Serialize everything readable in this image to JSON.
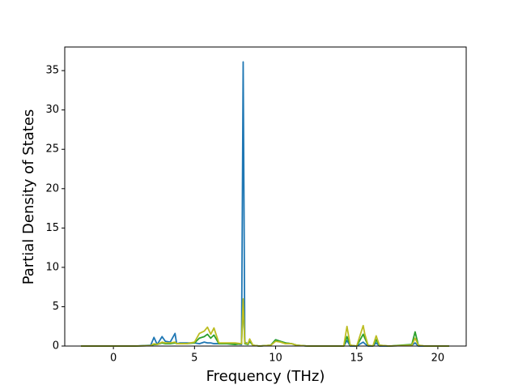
{
  "chart_data": {
    "type": "line",
    "xlabel": "Frequency (THz)",
    "ylabel": "Partial Density of States",
    "x": [
      -2,
      1.3,
      2.3,
      2.5,
      2.7,
      3.0,
      3.2,
      3.5,
      3.8,
      3.9,
      4.1,
      4.5,
      5.0,
      5.3,
      5.6,
      5.8,
      6.0,
      6.2,
      6.5,
      7.0,
      7.5,
      7.9,
      8.0,
      8.1,
      8.3,
      8.4,
      8.6,
      9.0,
      9.7,
      10.0,
      10.3,
      10.6,
      11.0,
      11.3,
      12.0,
      14.2,
      14.4,
      14.6,
      15.0,
      15.4,
      15.5,
      15.7,
      16.0,
      16.2,
      16.4,
      17.0,
      18.4,
      18.6,
      18.8,
      19.2,
      20.7
    ],
    "series": [
      {
        "color": "#1f77b4",
        "values": [
          0,
          0,
          0.1,
          1.1,
          0.2,
          1.2,
          0.6,
          0.5,
          1.6,
          0.3,
          0.4,
          0.4,
          0.4,
          0.3,
          0.5,
          0.4,
          0.4,
          0.3,
          0.3,
          0.3,
          0.3,
          0.2,
          36.1,
          0.5,
          0.3,
          0.8,
          0.1,
          0,
          0.1,
          0.8,
          0.6,
          0.4,
          0.3,
          0.1,
          0,
          0,
          0.7,
          0,
          0,
          0.5,
          0.3,
          0,
          0,
          0.4,
          0,
          0,
          0.1,
          0.4,
          0,
          0,
          0
        ]
      },
      {
        "color": "#2ca02c",
        "values": [
          0,
          0,
          0.05,
          0.2,
          0.2,
          0.4,
          0.3,
          0.3,
          0.4,
          0.3,
          0.3,
          0.3,
          0.4,
          1.0,
          1.2,
          1.5,
          1.0,
          1.4,
          0.3,
          0.3,
          0.2,
          0.3,
          5.5,
          0.3,
          0.2,
          0.6,
          0.1,
          0,
          0.1,
          0.8,
          0.6,
          0.4,
          0.3,
          0.1,
          0,
          0,
          1.2,
          0.1,
          0,
          1.5,
          1.0,
          0.1,
          0,
          0.8,
          0.1,
          0,
          0.2,
          1.8,
          0.1,
          0,
          0
        ]
      },
      {
        "color": "#bcbd22",
        "values": [
          0,
          0,
          0.05,
          0.3,
          0.2,
          0.5,
          0.4,
          0.4,
          0.5,
          0.3,
          0.3,
          0.3,
          0.5,
          1.6,
          1.9,
          2.4,
          1.5,
          2.3,
          0.4,
          0.4,
          0.4,
          0.3,
          6.0,
          0.4,
          0.3,
          0.9,
          0.1,
          0,
          0.1,
          0.6,
          0.5,
          0.3,
          0.3,
          0.1,
          0,
          0,
          2.5,
          0.1,
          0,
          2.6,
          1.5,
          0.1,
          0,
          1.3,
          0.1,
          0,
          0.1,
          1.0,
          0.1,
          0,
          0
        ]
      }
    ],
    "xlim": [
      -3,
      21.75
    ],
    "xticks": [
      0,
      5,
      10,
      15,
      20
    ],
    "ylim": [
      0,
      38
    ],
    "yticks": [
      0,
      5,
      10,
      15,
      20,
      25,
      30,
      35
    ]
  }
}
